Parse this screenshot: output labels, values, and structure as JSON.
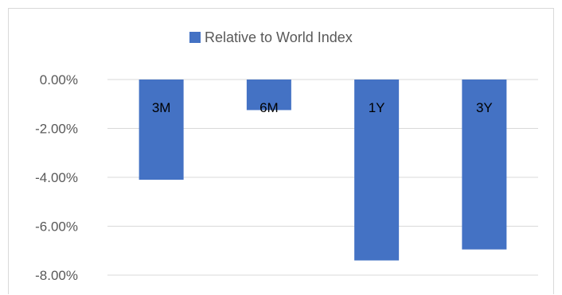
{
  "chart_data": {
    "type": "bar",
    "categories": [
      "3M",
      "6M",
      "1Y",
      "3Y"
    ],
    "series": [
      {
        "name": "Relative to World Index",
        "values": [
          -4.1,
          -1.25,
          -7.4,
          -6.95
        ],
        "color": "#4472c4"
      }
    ],
    "yticks": [
      "0.00%",
      "-2.00%",
      "-4.00%",
      "-6.00%",
      "-8.00%"
    ],
    "ylim": [
      -8,
      0
    ],
    "grid": true,
    "legend_position": "top",
    "title": "",
    "xlabel": "",
    "ylabel": ""
  }
}
